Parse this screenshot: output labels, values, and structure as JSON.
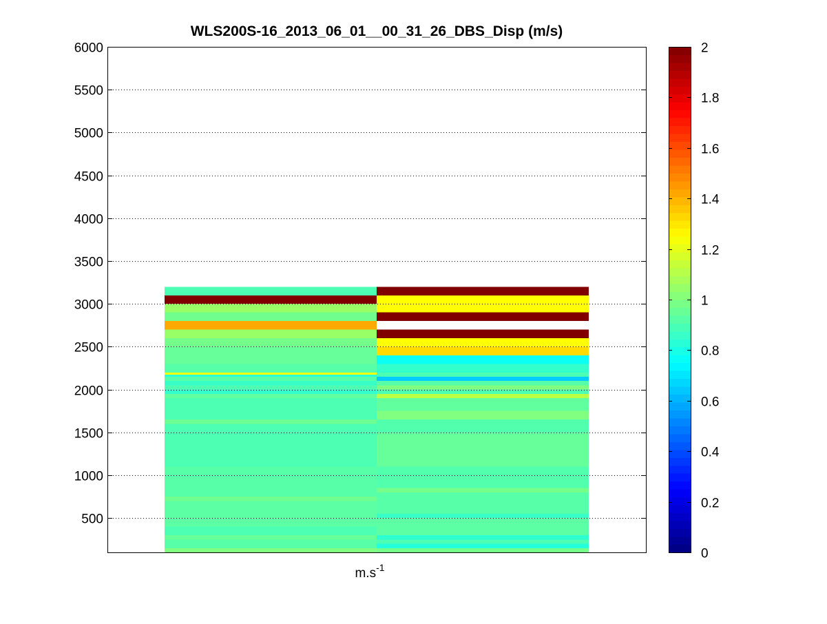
{
  "chart_data": {
    "type": "heatmap",
    "title": "WLS200S-16_2013_06_01__00_31_26_DBS_Disp (m/s)",
    "xlabel": {
      "base": "m.s",
      "superscript": "-1"
    },
    "ylabel": "",
    "ylim": [
      100,
      6000
    ],
    "yticks": [
      500,
      1000,
      1500,
      2000,
      2500,
      3000,
      3500,
      4000,
      4500,
      5000,
      5500,
      6000
    ],
    "grid": "horizontal dotted",
    "colormap": "jet",
    "clim": [
      0,
      2
    ],
    "colorbar_ticks": [
      0,
      0.2,
      0.4,
      0.6,
      0.8,
      1,
      1.2,
      1.4,
      1.6,
      1.8,
      2
    ],
    "colorbar_tick_labels": [
      "0",
      "0.2",
      "0.4",
      "0.6",
      "0.8",
      "1",
      "1.2",
      "1.4",
      "1.6",
      "1.8",
      "2"
    ],
    "columns": 2,
    "altitude_range": [
      100,
      3200
    ],
    "bin_height": 25,
    "column_1": [
      {
        "from": 100,
        "to": 150,
        "value": 1.0
      },
      {
        "from": 150,
        "to": 250,
        "value": 0.92
      },
      {
        "from": 250,
        "to": 300,
        "value": 0.95
      },
      {
        "from": 300,
        "to": 400,
        "value": 0.9
      },
      {
        "from": 400,
        "to": 700,
        "value": 0.93
      },
      {
        "from": 700,
        "to": 750,
        "value": 0.97
      },
      {
        "from": 750,
        "to": 1100,
        "value": 0.92
      },
      {
        "from": 1100,
        "to": 1600,
        "value": 0.9
      },
      {
        "from": 1600,
        "to": 1650,
        "value": 0.96
      },
      {
        "from": 1650,
        "to": 1900,
        "value": 0.9
      },
      {
        "from": 1900,
        "to": 1950,
        "value": 0.94
      },
      {
        "from": 1950,
        "to": 2000,
        "value": 0.85
      },
      {
        "from": 2000,
        "to": 2050,
        "value": 0.9
      },
      {
        "from": 2050,
        "to": 2100,
        "value": 0.86
      },
      {
        "from": 2100,
        "to": 2150,
        "value": 0.92
      },
      {
        "from": 2150,
        "to": 2175,
        "value": 0.83
      },
      {
        "from": 2175,
        "to": 2200,
        "value": 1.25
      },
      {
        "from": 2200,
        "to": 2300,
        "value": 0.92
      },
      {
        "from": 2300,
        "to": 2500,
        "value": 0.95
      },
      {
        "from": 2500,
        "to": 2600,
        "value": 0.98
      },
      {
        "from": 2600,
        "to": 2700,
        "value": 1.05
      },
      {
        "from": 2700,
        "to": 2800,
        "value": 1.42
      },
      {
        "from": 2800,
        "to": 2900,
        "value": 0.97
      },
      {
        "from": 2900,
        "to": 3000,
        "value": 1.05
      },
      {
        "from": 3000,
        "to": 3100,
        "value": 2.0
      },
      {
        "from": 3100,
        "to": 3200,
        "value": 0.9
      }
    ],
    "column_2": [
      {
        "from": 100,
        "to": 150,
        "value": 0.98
      },
      {
        "from": 150,
        "to": 200,
        "value": 0.82
      },
      {
        "from": 200,
        "to": 250,
        "value": 0.9
      },
      {
        "from": 250,
        "to": 300,
        "value": 0.84
      },
      {
        "from": 300,
        "to": 500,
        "value": 0.93
      },
      {
        "from": 500,
        "to": 550,
        "value": 0.86
      },
      {
        "from": 550,
        "to": 800,
        "value": 0.92
      },
      {
        "from": 800,
        "to": 850,
        "value": 0.98
      },
      {
        "from": 850,
        "to": 1100,
        "value": 0.91
      },
      {
        "from": 1100,
        "to": 1500,
        "value": 0.95
      },
      {
        "from": 1500,
        "to": 1650,
        "value": 0.91
      },
      {
        "from": 1650,
        "to": 1750,
        "value": 1.0
      },
      {
        "from": 1750,
        "to": 1900,
        "value": 0.94
      },
      {
        "from": 1900,
        "to": 1950,
        "value": 1.12
      },
      {
        "from": 1950,
        "to": 2000,
        "value": 0.9
      },
      {
        "from": 2000,
        "to": 2050,
        "value": 1.0
      },
      {
        "from": 2050,
        "to": 2100,
        "value": 0.92
      },
      {
        "from": 2100,
        "to": 2150,
        "value": 0.65
      },
      {
        "from": 2150,
        "to": 2200,
        "value": 0.9
      },
      {
        "from": 2200,
        "to": 2300,
        "value": 0.85
      },
      {
        "from": 2300,
        "to": 2400,
        "value": 0.77
      },
      {
        "from": 2400,
        "to": 2500,
        "value": 1.32
      },
      {
        "from": 2500,
        "to": 2600,
        "value": 1.25
      },
      {
        "from": 2600,
        "to": 2700,
        "value": 2.0
      },
      {
        "from": 2700,
        "to": 2800,
        "value": null
      },
      {
        "from": 2800,
        "to": 2900,
        "value": 2.0
      },
      {
        "from": 2900,
        "to": 3100,
        "value": 1.25
      },
      {
        "from": 3100,
        "to": 3200,
        "value": 2.0
      }
    ]
  }
}
